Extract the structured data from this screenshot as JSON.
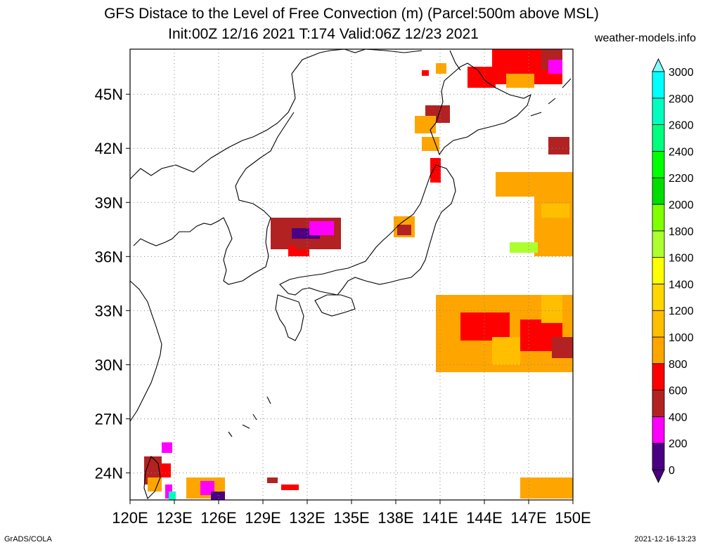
{
  "title": {
    "line1": "GFS Distace to the Level of Free Convection (m) (Parcel:500m above MSL)",
    "line2": "Init:00Z 12/16 2021 T:174 Valid:06Z 12/23 2021"
  },
  "site": "weather-models.info",
  "footer": {
    "left": "GrADS/COLA",
    "right": "2021-12-16-13:23"
  },
  "map": {
    "lon_range": [
      120,
      150
    ],
    "lat_range": [
      22.5,
      47.5
    ],
    "lon_ticks": [
      "120E",
      "123E",
      "126E",
      "129E",
      "132E",
      "135E",
      "138E",
      "141E",
      "144E",
      "147E",
      "150E"
    ],
    "lat_ticks": [
      "24N",
      "27N",
      "30N",
      "33N",
      "36N",
      "39N",
      "42N",
      "45N"
    ],
    "grid": true
  },
  "colorbar": {
    "levels": [
      "0",
      "200",
      "400",
      "600",
      "800",
      "1000",
      "1200",
      "1400",
      "1600",
      "1800",
      "2000",
      "2200",
      "2400",
      "2600",
      "2800",
      "3000"
    ],
    "colors": [
      "#4b0082",
      "#ff00ff",
      "#b22222",
      "#ff0000",
      "#ffa500",
      "#ffbf00",
      "#ffd700",
      "#ffff00",
      "#adff2f",
      "#7fff00",
      "#00dd00",
      "#00ff00",
      "#00ff7f",
      "#00ffbf",
      "#00ffff",
      "#7fffff"
    ],
    "min_color": "#4b0082",
    "max_color": "#7fffff"
  }
}
